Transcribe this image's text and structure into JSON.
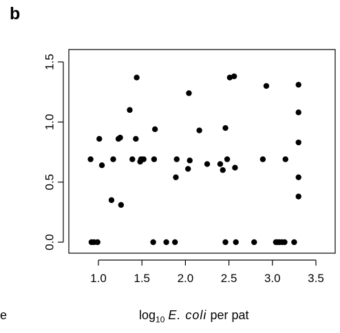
{
  "panel_label": "b",
  "stray_fragment": "e",
  "x_axis_label": {
    "prefix": "log",
    "subscript": "10",
    "italic": "E. coli",
    "suffix": "per pat"
  },
  "chart_data": {
    "type": "scatter",
    "title": "",
    "xlabel": "log10 E. coli per pat",
    "ylabel": "",
    "xlim": [
      0.87,
      3.35
    ],
    "ylim": [
      -0.05,
      1.55
    ],
    "x_ticks": [
      1.0,
      1.5,
      2.0,
      2.5,
      3.0,
      3.5
    ],
    "x_tick_labels": [
      "1.0",
      "1.5",
      "2.0",
      "2.5",
      "3.0",
      "3.5"
    ],
    "y_ticks": [
      0.0,
      0.5,
      1.0,
      1.5
    ],
    "y_tick_labels": [
      "0.0",
      "0.5",
      "1.0",
      "1.5"
    ],
    "grid": false,
    "point_color": "#000000",
    "points": [
      [
        0.91,
        0.69
      ],
      [
        0.92,
        0.0
      ],
      [
        0.95,
        0.0
      ],
      [
        0.99,
        0.0
      ],
      [
        1.01,
        0.86
      ],
      [
        1.04,
        0.64
      ],
      [
        1.15,
        0.35
      ],
      [
        1.17,
        0.69
      ],
      [
        1.23,
        0.86
      ],
      [
        1.25,
        0.87
      ],
      [
        1.26,
        0.31
      ],
      [
        1.36,
        1.1
      ],
      [
        1.39,
        0.69
      ],
      [
        1.43,
        0.86
      ],
      [
        1.44,
        1.37
      ],
      [
        1.48,
        0.67
      ],
      [
        1.49,
        0.69
      ],
      [
        1.52,
        0.69
      ],
      [
        1.63,
        0.0
      ],
      [
        1.64,
        0.69
      ],
      [
        1.65,
        0.94
      ],
      [
        1.78,
        0.0
      ],
      [
        1.88,
        0.0
      ],
      [
        1.89,
        0.54
      ],
      [
        1.9,
        0.69
      ],
      [
        2.03,
        0.61
      ],
      [
        2.04,
        1.24
      ],
      [
        2.05,
        0.68
      ],
      [
        2.16,
        0.93
      ],
      [
        2.25,
        0.65
      ],
      [
        2.4,
        0.65
      ],
      [
        2.43,
        0.6
      ],
      [
        2.46,
        0.95
      ],
      [
        2.46,
        0.0
      ],
      [
        2.48,
        0.69
      ],
      [
        2.51,
        1.37
      ],
      [
        2.56,
        1.38
      ],
      [
        2.57,
        0.62
      ],
      [
        2.58,
        0.0
      ],
      [
        2.79,
        0.0
      ],
      [
        2.89,
        0.69
      ],
      [
        2.93,
        1.3
      ],
      [
        3.04,
        0.0
      ],
      [
        3.06,
        0.0
      ],
      [
        3.08,
        0.0
      ],
      [
        3.11,
        0.0
      ],
      [
        3.14,
        0.0
      ],
      [
        3.15,
        0.69
      ],
      [
        3.25,
        0.0
      ],
      [
        3.3,
        1.31
      ],
      [
        3.3,
        1.08
      ],
      [
        3.3,
        0.83
      ],
      [
        3.3,
        0.54
      ],
      [
        3.3,
        0.38
      ]
    ]
  }
}
